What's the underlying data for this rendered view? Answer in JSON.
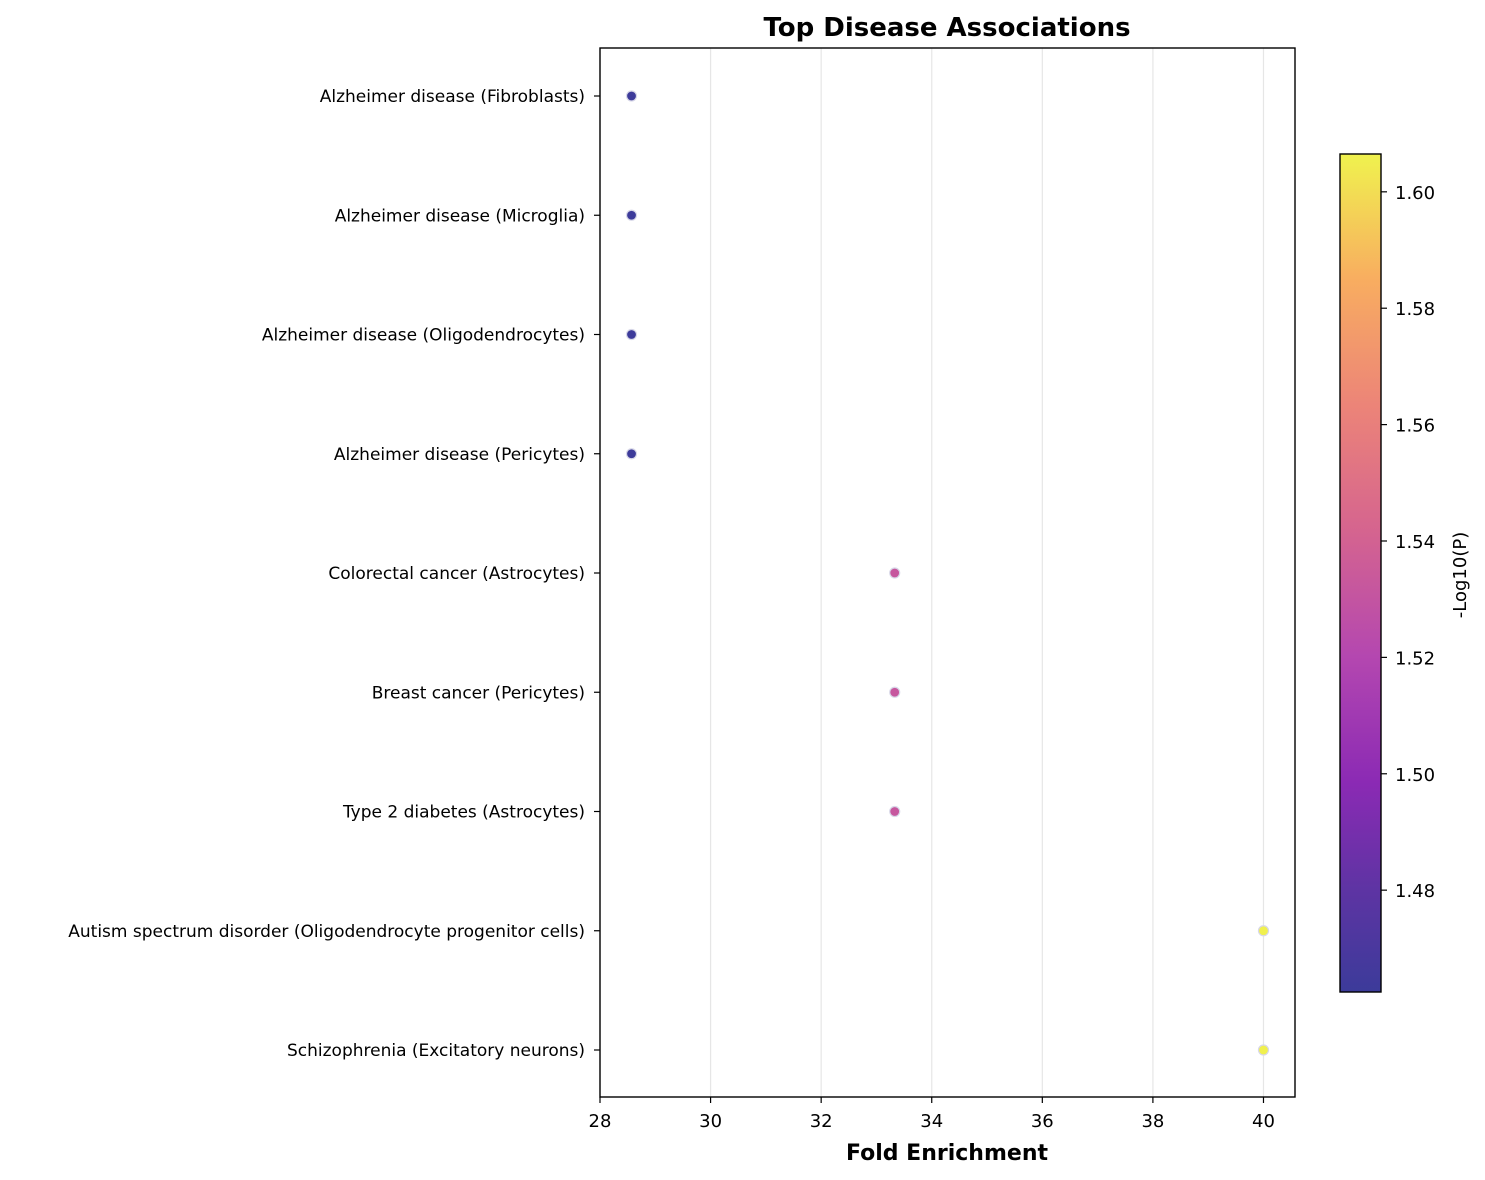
{
  "chart_data": {
    "type": "scatter",
    "title": "Top Disease Associations",
    "xlabel": "Fold Enrichment",
    "ylabel": "",
    "xlim": [
      28,
      40.57
    ],
    "xticks": [
      28,
      30,
      32,
      34,
      36,
      38,
      40
    ],
    "grid": "vertical",
    "categories": [
      "Alzheimer disease (Fibroblasts)",
      "Alzheimer disease (Microglia)",
      "Alzheimer disease (Oligodendrocytes)",
      "Alzheimer disease (Pericytes)",
      "Colorectal cancer (Astrocytes)",
      "Breast cancer (Pericytes)",
      "Type 2 diabetes (Astrocytes)",
      "Autism spectrum disorder (Oligodendrocyte progenitor cells)",
      "Schizophrenia (Excitatory neurons)"
    ],
    "x": [
      28.57,
      28.57,
      28.57,
      28.57,
      33.33,
      33.33,
      33.33,
      40.0,
      40.0
    ],
    "color_values": [
      1.463,
      1.463,
      1.463,
      1.463,
      1.532,
      1.532,
      1.532,
      1.606,
      1.606
    ],
    "colorbar": {
      "label": "-Log10(P)",
      "range": [
        1.4625,
        1.6065
      ],
      "ticks": [
        "1.48",
        "1.50",
        "1.52",
        "1.54",
        "1.56",
        "1.58",
        "1.60"
      ],
      "colormap": "plasma"
    }
  }
}
